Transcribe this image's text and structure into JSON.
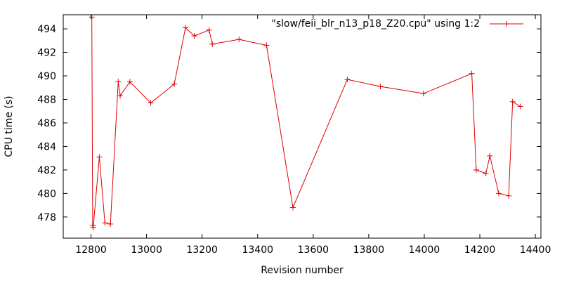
{
  "chart_data": {
    "type": "line",
    "title": "",
    "xlabel": "Revision number",
    "ylabel": "CPU time (s)",
    "xlim": [
      12700,
      14420
    ],
    "ylim": [
      476.2,
      495.2
    ],
    "xticks": [
      12800,
      13000,
      13200,
      13400,
      13600,
      13800,
      14000,
      14200,
      14400
    ],
    "yticks": [
      478,
      480,
      482,
      484,
      486,
      488,
      490,
      492,
      494
    ],
    "grid": false,
    "legend_position": "top-right",
    "series": [
      {
        "name": "\"slow/feii_blr_n13_p18_Z20.cpu\" using 1:2",
        "color": "#e00000",
        "marker": "plus",
        "x": [
          12803,
          12806,
          12808,
          12830,
          12850,
          12870,
          12898,
          12905,
          12940,
          13015,
          13100,
          13140,
          13172,
          13225,
          13237,
          13333,
          13432,
          13527,
          13723,
          13842,
          13997,
          14171,
          14187,
          14222,
          14236,
          14268,
          14304,
          14318,
          14346
        ],
        "y": [
          495.0,
          477.3,
          477.1,
          483.1,
          477.5,
          477.4,
          489.5,
          488.3,
          489.5,
          487.7,
          489.3,
          494.1,
          493.4,
          493.9,
          492.7,
          493.1,
          492.6,
          478.8,
          489.7,
          489.1,
          488.5,
          490.2,
          482.0,
          481.7,
          483.2,
          480.0,
          479.8,
          487.8,
          487.4
        ]
      }
    ]
  }
}
